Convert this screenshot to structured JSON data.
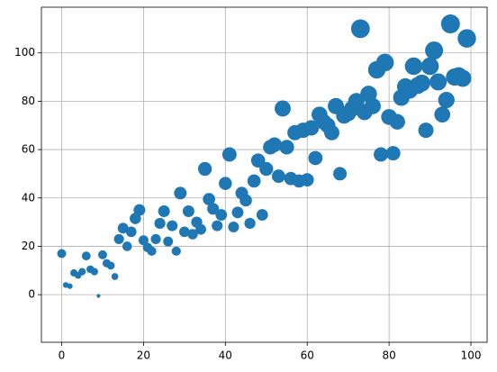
{
  "chart_data": {
    "type": "scatter",
    "color": "#1f77b4",
    "grid": true,
    "x": [
      0,
      1,
      2,
      3,
      4,
      5,
      6,
      7,
      8,
      9,
      10,
      11,
      12,
      13,
      14,
      15,
      16,
      17,
      18,
      19,
      20,
      21,
      22,
      23,
      24,
      25,
      26,
      27,
      28,
      29,
      30,
      31,
      32,
      33,
      34,
      35,
      36,
      37,
      38,
      39,
      40,
      41,
      42,
      43,
      44,
      45,
      46,
      47,
      48,
      49,
      50,
      51,
      52,
      53,
      54,
      55,
      56,
      57,
      58,
      59,
      60,
      61,
      62,
      63,
      64,
      65,
      66,
      67,
      68,
      69,
      70,
      71,
      72,
      73,
      74,
      75,
      76,
      77,
      78,
      79,
      80,
      81,
      82,
      83,
      84,
      85,
      86,
      87,
      88,
      89,
      90,
      91,
      92,
      93,
      94,
      95,
      96,
      97,
      98,
      99
    ],
    "values": [
      17,
      4,
      3.5,
      9,
      8,
      9.5,
      16,
      10.5,
      9.5,
      -0.5,
      16.5,
      13,
      12,
      7.5,
      23,
      27.5,
      20,
      26,
      31.5,
      35,
      22.5,
      19.5,
      18,
      23,
      29.5,
      34.5,
      22,
      28.5,
      18,
      42,
      26,
      34.5,
      25,
      30,
      27,
      52,
      39.5,
      35.5,
      28.5,
      33,
      46,
      58,
      28,
      34,
      42,
      39,
      29.5,
      47,
      55.5,
      33,
      52,
      61,
      62,
      49,
      77,
      61,
      48,
      67,
      47,
      68,
      47.5,
      69,
      56.5,
      74.5,
      71.5,
      70,
      67,
      78,
      50,
      74,
      75,
      77,
      80,
      110,
      75.5,
      83,
      78,
      93,
      58,
      96,
      73.5,
      58.5,
      71.5,
      81.5,
      86,
      84.5,
      94.5,
      86.5,
      87.5,
      68,
      94.5,
      101,
      88,
      74.5,
      80.5,
      112,
      90,
      90.5,
      89.5,
      106
    ],
    "xlim": [
      -4.95,
      103.95
    ],
    "ylim": [
      -19.7,
      118.9
    ],
    "xticks": [
      0,
      20,
      40,
      60,
      80,
      100
    ],
    "yticks": [
      0,
      20,
      40,
      60,
      80,
      100
    ]
  }
}
